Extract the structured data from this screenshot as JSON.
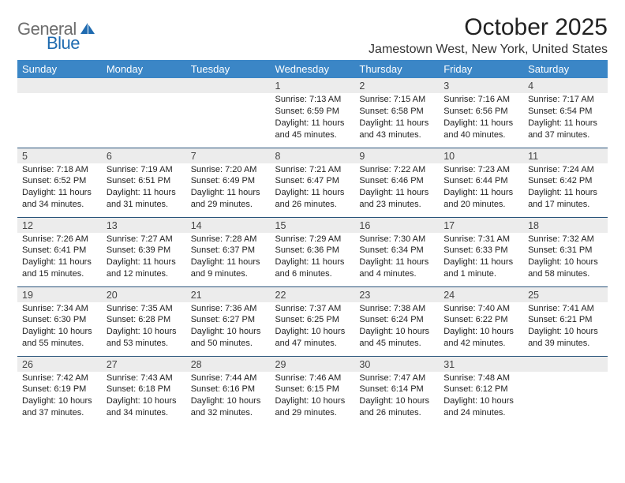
{
  "brand": {
    "word1": "General",
    "word2": "Blue",
    "word1_color": "#6d6d6d",
    "word2_color": "#1f6bb0",
    "icon_fill": "#1f6bb0"
  },
  "title": "October 2025",
  "location": "Jamestown West, New York, United States",
  "header_bg": "#3b86c6",
  "border_color": "#28537a",
  "daynum_bg": "#ececec",
  "page_bg": "#ffffff",
  "weekdays": [
    "Sunday",
    "Monday",
    "Tuesday",
    "Wednesday",
    "Thursday",
    "Friday",
    "Saturday"
  ],
  "weeks": [
    [
      null,
      null,
      null,
      {
        "d": "1",
        "sr": "7:13 AM",
        "ss": "6:59 PM",
        "dl": "11 hours and 45 minutes."
      },
      {
        "d": "2",
        "sr": "7:15 AM",
        "ss": "6:58 PM",
        "dl": "11 hours and 43 minutes."
      },
      {
        "d": "3",
        "sr": "7:16 AM",
        "ss": "6:56 PM",
        "dl": "11 hours and 40 minutes."
      },
      {
        "d": "4",
        "sr": "7:17 AM",
        "ss": "6:54 PM",
        "dl": "11 hours and 37 minutes."
      }
    ],
    [
      {
        "d": "5",
        "sr": "7:18 AM",
        "ss": "6:52 PM",
        "dl": "11 hours and 34 minutes."
      },
      {
        "d": "6",
        "sr": "7:19 AM",
        "ss": "6:51 PM",
        "dl": "11 hours and 31 minutes."
      },
      {
        "d": "7",
        "sr": "7:20 AM",
        "ss": "6:49 PM",
        "dl": "11 hours and 29 minutes."
      },
      {
        "d": "8",
        "sr": "7:21 AM",
        "ss": "6:47 PM",
        "dl": "11 hours and 26 minutes."
      },
      {
        "d": "9",
        "sr": "7:22 AM",
        "ss": "6:46 PM",
        "dl": "11 hours and 23 minutes."
      },
      {
        "d": "10",
        "sr": "7:23 AM",
        "ss": "6:44 PM",
        "dl": "11 hours and 20 minutes."
      },
      {
        "d": "11",
        "sr": "7:24 AM",
        "ss": "6:42 PM",
        "dl": "11 hours and 17 minutes."
      }
    ],
    [
      {
        "d": "12",
        "sr": "7:26 AM",
        "ss": "6:41 PM",
        "dl": "11 hours and 15 minutes."
      },
      {
        "d": "13",
        "sr": "7:27 AM",
        "ss": "6:39 PM",
        "dl": "11 hours and 12 minutes."
      },
      {
        "d": "14",
        "sr": "7:28 AM",
        "ss": "6:37 PM",
        "dl": "11 hours and 9 minutes."
      },
      {
        "d": "15",
        "sr": "7:29 AM",
        "ss": "6:36 PM",
        "dl": "11 hours and 6 minutes."
      },
      {
        "d": "16",
        "sr": "7:30 AM",
        "ss": "6:34 PM",
        "dl": "11 hours and 4 minutes."
      },
      {
        "d": "17",
        "sr": "7:31 AM",
        "ss": "6:33 PM",
        "dl": "11 hours and 1 minute."
      },
      {
        "d": "18",
        "sr": "7:32 AM",
        "ss": "6:31 PM",
        "dl": "10 hours and 58 minutes."
      }
    ],
    [
      {
        "d": "19",
        "sr": "7:34 AM",
        "ss": "6:30 PM",
        "dl": "10 hours and 55 minutes."
      },
      {
        "d": "20",
        "sr": "7:35 AM",
        "ss": "6:28 PM",
        "dl": "10 hours and 53 minutes."
      },
      {
        "d": "21",
        "sr": "7:36 AM",
        "ss": "6:27 PM",
        "dl": "10 hours and 50 minutes."
      },
      {
        "d": "22",
        "sr": "7:37 AM",
        "ss": "6:25 PM",
        "dl": "10 hours and 47 minutes."
      },
      {
        "d": "23",
        "sr": "7:38 AM",
        "ss": "6:24 PM",
        "dl": "10 hours and 45 minutes."
      },
      {
        "d": "24",
        "sr": "7:40 AM",
        "ss": "6:22 PM",
        "dl": "10 hours and 42 minutes."
      },
      {
        "d": "25",
        "sr": "7:41 AM",
        "ss": "6:21 PM",
        "dl": "10 hours and 39 minutes."
      }
    ],
    [
      {
        "d": "26",
        "sr": "7:42 AM",
        "ss": "6:19 PM",
        "dl": "10 hours and 37 minutes."
      },
      {
        "d": "27",
        "sr": "7:43 AM",
        "ss": "6:18 PM",
        "dl": "10 hours and 34 minutes."
      },
      {
        "d": "28",
        "sr": "7:44 AM",
        "ss": "6:16 PM",
        "dl": "10 hours and 32 minutes."
      },
      {
        "d": "29",
        "sr": "7:46 AM",
        "ss": "6:15 PM",
        "dl": "10 hours and 29 minutes."
      },
      {
        "d": "30",
        "sr": "7:47 AM",
        "ss": "6:14 PM",
        "dl": "10 hours and 26 minutes."
      },
      {
        "d": "31",
        "sr": "7:48 AM",
        "ss": "6:12 PM",
        "dl": "10 hours and 24 minutes."
      },
      null
    ]
  ],
  "labels": {
    "sunrise": "Sunrise:",
    "sunset": "Sunset:",
    "daylight": "Daylight:"
  }
}
